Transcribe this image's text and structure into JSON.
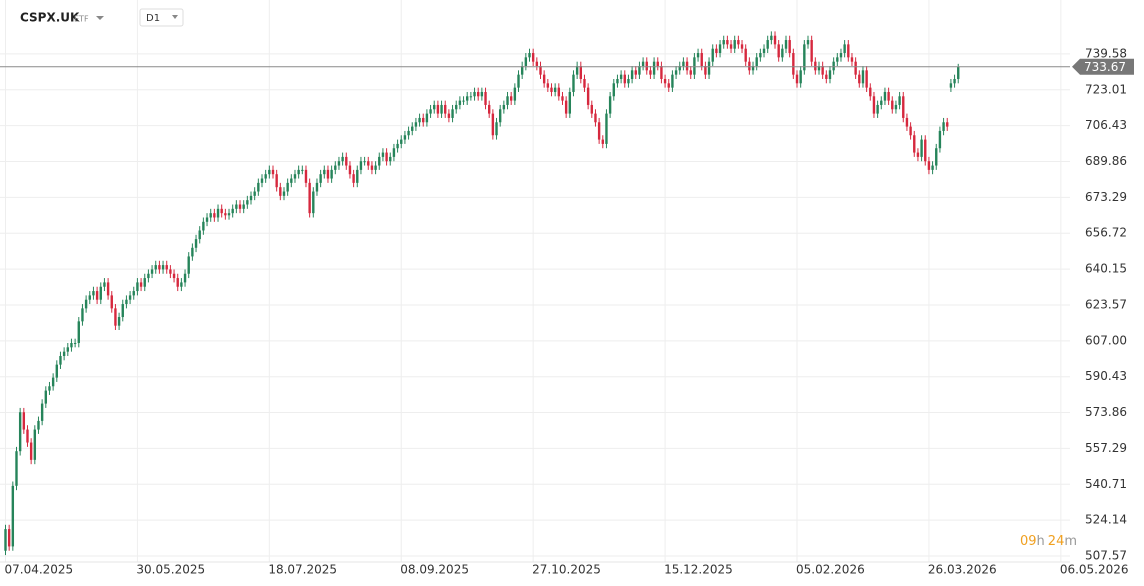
{
  "header": {
    "symbol": "CSPX.UK",
    "kind": "ETF",
    "interval": "D1"
  },
  "countdown": {
    "hours": "09",
    "hours_unit": "h",
    "minutes": "24",
    "minutes_unit": "m"
  },
  "chart_data": {
    "type": "candlestick",
    "up_color": "#26845a",
    "down_color": "#d6283e",
    "grid": true,
    "xlim": [
      -1.5,
      290.5
    ],
    "xticks": [
      {
        "value": 0,
        "label": "07.04.2025"
      },
      {
        "value": 36,
        "label": "30.05.2025"
      },
      {
        "value": 72,
        "label": "18.07.2025"
      },
      {
        "value": 108,
        "label": "08.09.2025"
      },
      {
        "value": 144,
        "label": "27.10.2025"
      },
      {
        "value": 180,
        "label": "15.12.2025"
      },
      {
        "value": 216,
        "label": "05.02.2026"
      },
      {
        "value": 252,
        "label": "26.03.2026"
      },
      {
        "value": 288,
        "label": "06.05.2026"
      }
    ],
    "ylim": [
      504.8,
      764.5
    ],
    "yticks": [
      507.57,
      524.14,
      540.71,
      557.29,
      573.86,
      590.43,
      {
        "value": 607,
        "label": "607.00"
      },
      623.57,
      640.15,
      656.72,
      673.29,
      689.86,
      706.43,
      723.01,
      739.58
    ],
    "last_price": 733.67,
    "open": [
      510,
      520,
      512,
      540,
      556,
      574,
      566,
      560,
      552,
      566,
      570,
      578,
      584,
      586,
      590,
      596,
      600,
      602,
      604,
      606,
      606,
      616,
      622,
      626,
      628,
      630,
      626,
      632,
      634,
      628,
      622,
      614,
      618,
      624,
      626,
      628,
      630,
      634,
      632,
      636,
      638,
      640,
      642,
      640,
      642,
      640,
      638,
      636,
      632,
      634,
      638,
      646,
      650,
      654,
      658,
      662,
      664,
      666,
      664,
      668,
      666,
      665,
      666,
      668,
      670,
      668,
      670,
      672,
      674,
      676,
      680,
      682,
      684,
      686,
      684,
      678,
      674,
      676,
      680,
      682,
      684,
      686,
      686,
      680,
      666,
      676,
      680,
      684,
      686,
      682,
      686,
      688,
      690,
      692,
      688,
      684,
      680,
      686,
      690,
      690,
      688,
      686,
      688,
      692,
      694,
      690,
      692,
      696,
      698,
      700,
      702,
      704,
      706,
      708,
      710,
      708,
      712,
      714,
      716,
      712,
      716,
      712,
      710,
      714,
      716,
      718,
      718,
      720,
      720,
      722,
      720,
      722,
      716,
      712,
      702,
      708,
      714,
      716,
      720,
      718,
      724,
      730,
      734,
      738,
      740,
      736,
      734,
      730,
      726,
      724,
      722,
      724,
      720,
      718,
      712,
      722,
      730,
      734,
      728,
      724,
      716,
      712,
      708,
      700,
      698,
      712,
      720,
      726,
      728,
      730,
      726,
      728,
      732,
      730,
      734,
      736,
      732,
      730,
      736,
      734,
      728,
      726,
      724,
      730,
      732,
      734,
      736,
      732,
      730,
      738,
      740,
      734,
      730,
      736,
      742,
      740,
      744,
      746,
      744,
      742,
      746,
      744,
      742,
      736,
      732,
      734,
      738,
      740,
      742,
      746,
      748,
      744,
      738,
      742,
      746,
      740,
      730,
      726,
      732,
      744,
      746,
      736,
      732,
      734,
      730,
      728,
      732,
      736,
      738,
      740,
      744,
      738,
      736,
      730,
      726,
      732,
      724,
      720,
      712,
      716,
      718,
      722,
      718,
      714,
      716,
      720,
      710,
      706,
      702,
      694,
      692,
      700,
      690,
      686,
      688,
      696,
      704,
      708,
      724,
      726,
      728
    ],
    "high": [
      522,
      522,
      542,
      558,
      576,
      576,
      568,
      562,
      568,
      572,
      580,
      586,
      588,
      592,
      598,
      602,
      604,
      606,
      608,
      608,
      618,
      624,
      628,
      630,
      632,
      632,
      634,
      636,
      636,
      630,
      624,
      620,
      626,
      628,
      630,
      632,
      636,
      636,
      638,
      640,
      642,
      644,
      644,
      644,
      644,
      642,
      640,
      638,
      636,
      640,
      648,
      652,
      656,
      660,
      664,
      666,
      668,
      668,
      670,
      670,
      668,
      668,
      670,
      672,
      672,
      672,
      674,
      676,
      678,
      682,
      684,
      686,
      688,
      688,
      686,
      680,
      678,
      682,
      684,
      686,
      688,
      688,
      688,
      682,
      678,
      682,
      686,
      688,
      688,
      688,
      690,
      692,
      694,
      694,
      690,
      686,
      688,
      692,
      692,
      692,
      690,
      690,
      694,
      696,
      696,
      694,
      698,
      700,
      702,
      704,
      706,
      708,
      710,
      712,
      712,
      714,
      716,
      718,
      718,
      718,
      718,
      714,
      716,
      718,
      720,
      720,
      722,
      722,
      724,
      724,
      724,
      724,
      718,
      714,
      710,
      716,
      718,
      722,
      722,
      726,
      732,
      736,
      740,
      742,
      742,
      738,
      736,
      732,
      728,
      726,
      726,
      726,
      722,
      720,
      724,
      732,
      736,
      736,
      730,
      726,
      718,
      714,
      710,
      702,
      714,
      722,
      728,
      730,
      732,
      732,
      730,
      734,
      734,
      736,
      738,
      738,
      734,
      738,
      738,
      736,
      730,
      728,
      732,
      734,
      736,
      738,
      738,
      734,
      740,
      742,
      742,
      736,
      738,
      744,
      744,
      746,
      748,
      748,
      746,
      748,
      748,
      746,
      744,
      738,
      736,
      740,
      742,
      744,
      748,
      750,
      750,
      746,
      744,
      748,
      748,
      742,
      732,
      734,
      746,
      748,
      748,
      738,
      736,
      736,
      732,
      734,
      738,
      740,
      742,
      746,
      746,
      740,
      738,
      732,
      734,
      734,
      726,
      722,
      718,
      720,
      724,
      724,
      720,
      718,
      722,
      722,
      712,
      708,
      704,
      696,
      702,
      702,
      692,
      690,
      698,
      706,
      710,
      710,
      728,
      730,
      735
    ],
    "low": [
      508,
      510,
      510,
      538,
      554,
      564,
      558,
      550,
      550,
      564,
      568,
      576,
      582,
      584,
      588,
      594,
      598,
      600,
      602,
      604,
      604,
      614,
      620,
      624,
      626,
      624,
      624,
      630,
      626,
      620,
      612,
      612,
      616,
      622,
      624,
      626,
      628,
      630,
      630,
      634,
      636,
      638,
      638,
      638,
      638,
      636,
      634,
      630,
      630,
      632,
      636,
      644,
      648,
      652,
      656,
      660,
      662,
      662,
      662,
      664,
      663,
      663,
      664,
      666,
      666,
      666,
      668,
      670,
      672,
      674,
      678,
      680,
      682,
      682,
      676,
      672,
      672,
      674,
      678,
      680,
      682,
      684,
      678,
      664,
      664,
      674,
      678,
      682,
      680,
      680,
      684,
      686,
      688,
      686,
      682,
      678,
      678,
      684,
      688,
      686,
      684,
      684,
      686,
      690,
      688,
      688,
      690,
      694,
      696,
      698,
      700,
      702,
      704,
      706,
      706,
      706,
      710,
      712,
      710,
      710,
      710,
      708,
      708,
      712,
      714,
      716,
      716,
      718,
      718,
      718,
      718,
      714,
      710,
      700,
      700,
      706,
      712,
      714,
      716,
      716,
      722,
      728,
      732,
      736,
      734,
      732,
      728,
      724,
      722,
      720,
      720,
      718,
      716,
      710,
      710,
      720,
      728,
      726,
      722,
      714,
      710,
      706,
      698,
      696,
      696,
      710,
      718,
      724,
      726,
      724,
      724,
      726,
      728,
      728,
      732,
      730,
      728,
      728,
      732,
      726,
      724,
      722,
      722,
      728,
      730,
      732,
      730,
      728,
      728,
      736,
      732,
      728,
      728,
      734,
      738,
      738,
      742,
      742,
      740,
      740,
      742,
      740,
      734,
      730,
      730,
      732,
      736,
      738,
      740,
      744,
      742,
      736,
      736,
      740,
      738,
      728,
      724,
      724,
      730,
      742,
      734,
      730,
      730,
      728,
      726,
      726,
      730,
      734,
      736,
      738,
      736,
      734,
      728,
      724,
      724,
      722,
      718,
      710,
      710,
      714,
      716,
      716,
      712,
      712,
      714,
      708,
      704,
      700,
      692,
      690,
      690,
      688,
      684,
      684,
      686,
      694,
      702,
      704,
      722,
      724,
      726
    ],
    "close": [
      520,
      512,
      540,
      556,
      574,
      566,
      560,
      552,
      566,
      570,
      578,
      584,
      586,
      590,
      596,
      600,
      602,
      604,
      606,
      606,
      616,
      622,
      626,
      628,
      630,
      626,
      632,
      634,
      628,
      622,
      614,
      618,
      624,
      626,
      628,
      630,
      634,
      632,
      636,
      638,
      640,
      642,
      640,
      642,
      640,
      638,
      636,
      632,
      634,
      638,
      646,
      650,
      654,
      658,
      662,
      664,
      666,
      664,
      668,
      666,
      665,
      666,
      668,
      670,
      668,
      670,
      672,
      674,
      676,
      680,
      682,
      684,
      686,
      684,
      678,
      674,
      676,
      680,
      682,
      684,
      686,
      686,
      680,
      666,
      676,
      680,
      684,
      686,
      682,
      686,
      688,
      690,
      692,
      688,
      684,
      680,
      686,
      690,
      690,
      688,
      686,
      688,
      692,
      694,
      690,
      692,
      696,
      698,
      700,
      702,
      704,
      706,
      708,
      710,
      708,
      712,
      714,
      716,
      712,
      716,
      712,
      710,
      714,
      716,
      718,
      718,
      720,
      720,
      722,
      720,
      722,
      716,
      712,
      702,
      708,
      714,
      716,
      720,
      718,
      724,
      730,
      734,
      738,
      740,
      736,
      734,
      730,
      726,
      724,
      722,
      724,
      720,
      718,
      712,
      722,
      730,
      734,
      728,
      724,
      716,
      712,
      708,
      700,
      698,
      712,
      720,
      726,
      728,
      730,
      726,
      728,
      732,
      730,
      734,
      736,
      732,
      730,
      736,
      734,
      728,
      726,
      724,
      730,
      732,
      734,
      736,
      732,
      730,
      738,
      740,
      734,
      730,
      736,
      742,
      740,
      744,
      746,
      744,
      742,
      746,
      744,
      742,
      736,
      732,
      734,
      738,
      740,
      742,
      746,
      748,
      744,
      738,
      742,
      746,
      740,
      730,
      726,
      732,
      744,
      746,
      736,
      732,
      734,
      730,
      728,
      732,
      736,
      738,
      740,
      744,
      738,
      736,
      730,
      726,
      732,
      724,
      720,
      712,
      716,
      718,
      722,
      718,
      714,
      716,
      720,
      710,
      706,
      702,
      694,
      692,
      700,
      690,
      686,
      688,
      696,
      704,
      708,
      706,
      726,
      728,
      733.67
    ]
  }
}
